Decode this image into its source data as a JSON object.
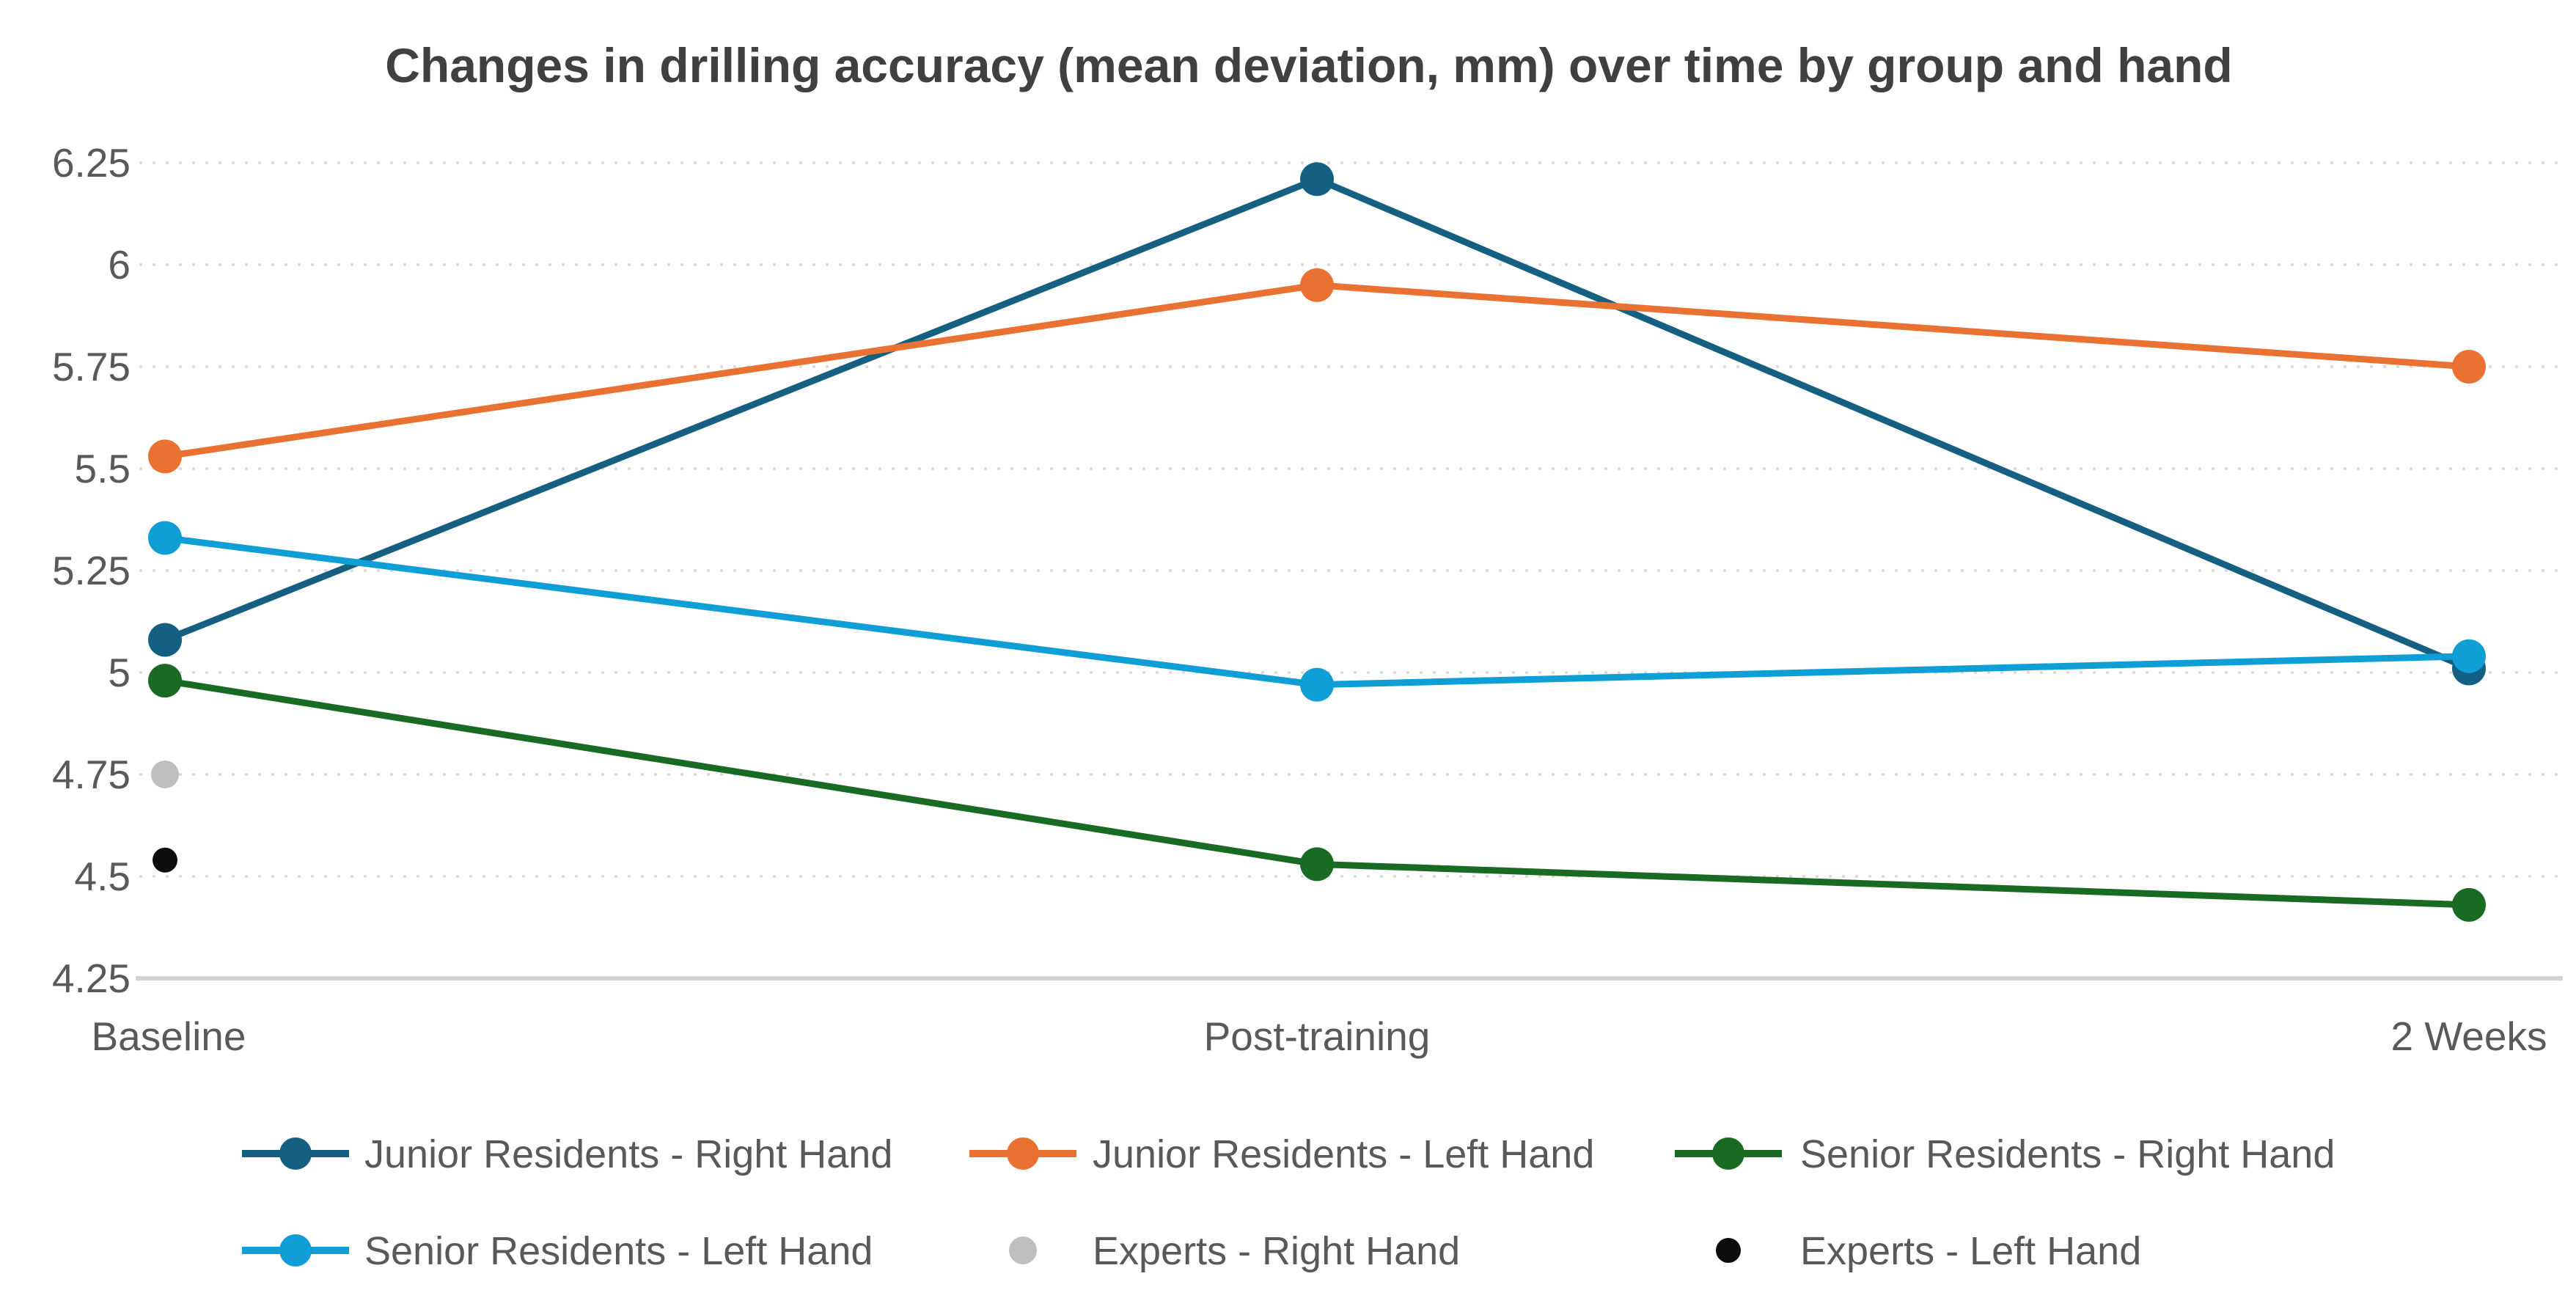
{
  "title": "Changes in drilling accuracy (mean deviation, mm) over time by group and hand",
  "colors": {
    "background": "#FFFFFF",
    "title_text": "#404040",
    "axis_text": "#595959",
    "gridline": "#D9D9D9",
    "axis_line": "#D2D2D2"
  },
  "chart_data": {
    "type": "line",
    "title": "Changes in drilling accuracy (mean deviation, mm) over time by group and hand",
    "categories": [
      "Baseline",
      "Post-training",
      "2 Weeks"
    ],
    "series": [
      {
        "name": "Junior Residents - Right Hand",
        "color": "#156082",
        "values": [
          5.08,
          6.21,
          5.01
        ]
      },
      {
        "name": "Junior Residents - Left Hand",
        "color": "#E97132",
        "values": [
          5.53,
          5.95,
          5.75
        ]
      },
      {
        "name": "Senior Residents - Right Hand",
        "color": "#196B24",
        "values": [
          4.98,
          4.53,
          4.43
        ]
      },
      {
        "name": "Senior Residents - Left Hand",
        "color": "#0F9ED5",
        "values": [
          5.33,
          4.97,
          5.04
        ]
      },
      {
        "name": "Experts - Right Hand",
        "color": "#BFBFBF",
        "values": [
          4.75,
          null,
          null
        ]
      },
      {
        "name": "Experts - Left Hand",
        "color": "#0D0D0D",
        "values": [
          4.54,
          null,
          null
        ]
      }
    ],
    "ylim": [
      4.25,
      6.25
    ],
    "ytick_step": 0.25,
    "yticks": [
      "6.25",
      "6",
      "5.75",
      "5.5",
      "5.25",
      "5",
      "4.75",
      "4.5",
      "4.25"
    ],
    "xlabel": "",
    "ylabel": "",
    "grid": "horizontal-dotted",
    "legend_position": "bottom-two-rows",
    "legend_rows": [
      [
        "Junior Residents - Right Hand",
        "Junior Residents - Left Hand",
        "Senior Residents - Right Hand"
      ],
      [
        "Senior Residents - Left Hand",
        "Experts - Right Hand",
        "Experts - Left Hand"
      ]
    ]
  }
}
